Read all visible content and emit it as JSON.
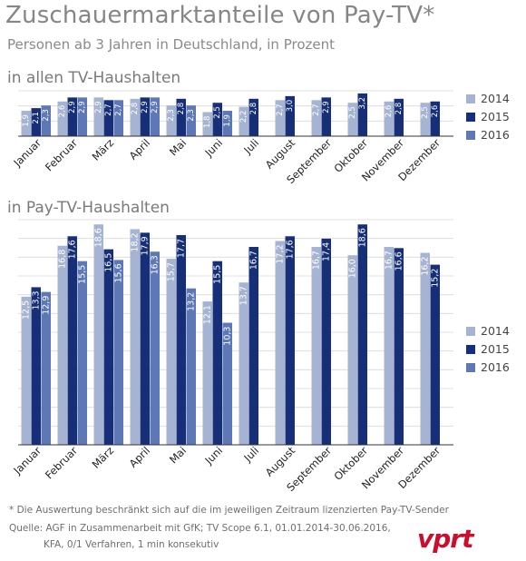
{
  "title": "Zuschauermarktanteile von Pay-TV*",
  "subtitle": "Personen ab 3 Jahren in Deutschland, in Prozent",
  "colors": {
    "2014": "#a6b4d4",
    "2015": "#162f78",
    "2016": "#5e77b5",
    "grid": "#d8d8d8",
    "axis": "#333333",
    "label_dark": "#ffffff",
    "label_light": "#ffffff"
  },
  "chart_data": [
    {
      "type": "bar",
      "title": "in allen TV-Haushalten",
      "categories": [
        "Januar",
        "Februar",
        "März",
        "April",
        "Mai",
        "Juni",
        "Juli",
        "August",
        "September",
        "Oktober",
        "November",
        "Dezember"
      ],
      "series": [
        {
          "name": "2014",
          "values": [
            1.9,
            2.6,
            2.9,
            2.8,
            2.3,
            1.8,
            2.2,
            2.7,
            2.7,
            2.5,
            2.6,
            2.5
          ]
        },
        {
          "name": "2015",
          "values": [
            2.1,
            2.9,
            2.7,
            2.9,
            2.8,
            2.5,
            2.8,
            3.0,
            2.9,
            3.2,
            2.8,
            2.6
          ]
        },
        {
          "name": "2016",
          "values": [
            2.3,
            2.9,
            2.7,
            2.9,
            2.3,
            1.9,
            null,
            null,
            null,
            null,
            null,
            null
          ]
        }
      ],
      "ylim": [
        0,
        3.4
      ],
      "legend": "right",
      "grid": true
    },
    {
      "type": "bar",
      "title": "in Pay-TV-Haushalten",
      "categories": [
        "Januar",
        "Februar",
        "März",
        "April",
        "Mai",
        "Juni",
        "Juli",
        "August",
        "September",
        "Oktober",
        "November",
        "Dezember"
      ],
      "series": [
        {
          "name": "2014",
          "values": [
            12.5,
            16.8,
            18.6,
            18.2,
            15.7,
            12.1,
            13.7,
            17.2,
            16.7,
            16.0,
            16.7,
            16.2
          ]
        },
        {
          "name": "2015",
          "values": [
            13.3,
            17.6,
            16.5,
            17.9,
            17.7,
            15.5,
            16.7,
            17.6,
            17.4,
            18.6,
            16.6,
            15.2
          ]
        },
        {
          "name": "2016",
          "values": [
            12.9,
            15.5,
            15.6,
            16.3,
            13.2,
            10.3,
            null,
            null,
            null,
            null,
            null,
            null
          ]
        }
      ],
      "ylim": [
        0,
        19
      ],
      "legend": "right",
      "grid": true
    }
  ],
  "footnote": "* Die Auswertung beschränkt sich auf die im jeweiligen Zeitraum lizenzierten Pay-TV-Sender",
  "source_line1": "Quelle: AGF in Zusammenarbeit mit GfK; TV Scope 6.1, 01.01.2014-30.06.2016,",
  "source_line2": "KFA, 0/1 Verfahren, 1 min konsekutiv",
  "logo_text": "vprt"
}
